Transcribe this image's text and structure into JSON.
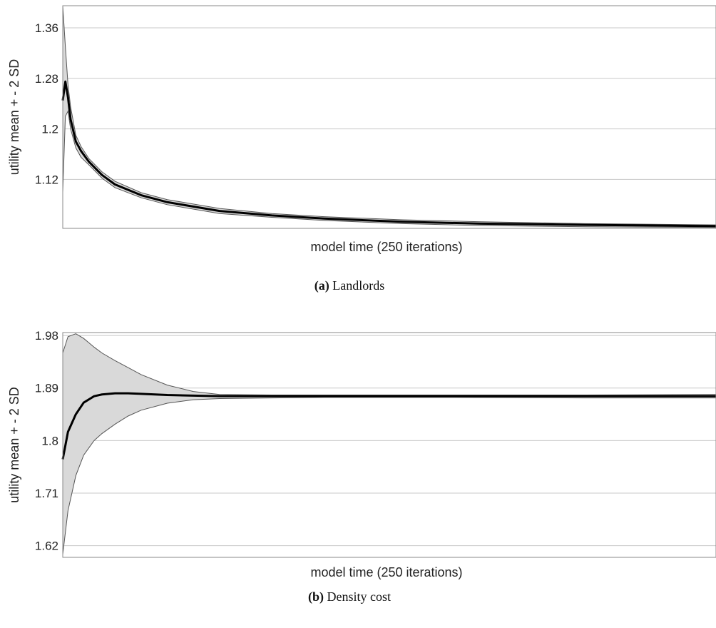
{
  "chart_data": [
    {
      "type": "line",
      "panel_tag": "(a)",
      "caption": "Landlords",
      "xlabel": "model time (250 iterations)",
      "ylabel": "utility mean + - 2 SD",
      "yticks": [
        "1.36",
        "1.28",
        "1.2",
        "1.12"
      ],
      "ylim": [
        1.0425,
        1.395
      ],
      "xlim": [
        0,
        250
      ],
      "grid": "horizontal",
      "band_color": "#d9d9d9",
      "line_color": "#000000",
      "series": [
        {
          "x": [
            0,
            1,
            2,
            3,
            5,
            7,
            10,
            15,
            20,
            30,
            40,
            60,
            80,
            100,
            130,
            160,
            200,
            250
          ],
          "mean": [
            1.245,
            1.275,
            1.25,
            1.215,
            1.18,
            1.165,
            1.148,
            1.127,
            1.112,
            1.095,
            1.084,
            1.07,
            1.063,
            1.058,
            1.053,
            1.05,
            1.048,
            1.046
          ],
          "upper": [
            1.395,
            1.33,
            1.27,
            1.235,
            1.19,
            1.172,
            1.153,
            1.132,
            1.117,
            1.099,
            1.088,
            1.074,
            1.066,
            1.061,
            1.056,
            1.053,
            1.05,
            1.048
          ],
          "lower": [
            1.1,
            1.22,
            1.228,
            1.2,
            1.17,
            1.155,
            1.143,
            1.122,
            1.107,
            1.091,
            1.08,
            1.066,
            1.06,
            1.055,
            1.05,
            1.047,
            1.045,
            1.044
          ]
        }
      ]
    },
    {
      "type": "line",
      "panel_tag": "(b)",
      "caption": "Density cost",
      "xlabel": "model time (250 iterations)",
      "ylabel": "utility mean + - 2 SD",
      "yticks": [
        "1.98",
        "1.89",
        "1.8",
        "1.71",
        "1.62"
      ],
      "ylim": [
        1.6,
        1.985
      ],
      "xlim": [
        0,
        250
      ],
      "grid": "horizontal",
      "band_color": "#d9d9d9",
      "line_color": "#000000",
      "series": [
        {
          "x": [
            0,
            2,
            5,
            8,
            12,
            15,
            20,
            25,
            30,
            40,
            50,
            60,
            80,
            100,
            150,
            200,
            250
          ],
          "mean": [
            1.768,
            1.815,
            1.845,
            1.865,
            1.876,
            1.879,
            1.881,
            1.881,
            1.88,
            1.878,
            1.877,
            1.876,
            1.876,
            1.876,
            1.876,
            1.876,
            1.876
          ],
          "upper": [
            1.95,
            1.978,
            1.983,
            1.975,
            1.96,
            1.95,
            1.937,
            1.925,
            1.913,
            1.895,
            1.884,
            1.879,
            1.878,
            1.878,
            1.878,
            1.878,
            1.879
          ],
          "lower": [
            1.605,
            1.68,
            1.74,
            1.775,
            1.8,
            1.812,
            1.828,
            1.842,
            1.852,
            1.864,
            1.87,
            1.872,
            1.873,
            1.874,
            1.874,
            1.873,
            1.873
          ]
        }
      ]
    }
  ]
}
